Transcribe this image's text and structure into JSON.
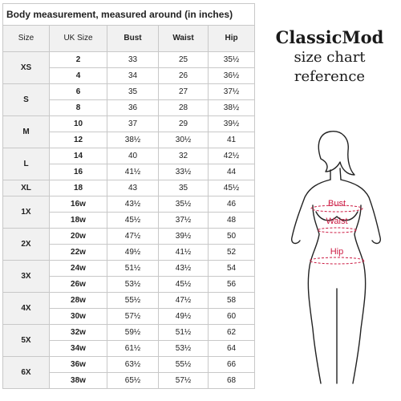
{
  "table": {
    "title": "Body measurement, measured around (in inches)",
    "headers": [
      "Size",
      "UK Size",
      "Bust",
      "Waist",
      "Hip"
    ],
    "groups": [
      {
        "size": "XS",
        "rows": [
          [
            "2",
            "33",
            "25",
            "35½"
          ],
          [
            "4",
            "34",
            "26",
            "36½"
          ]
        ]
      },
      {
        "size": "S",
        "rows": [
          [
            "6",
            "35",
            "27",
            "37½"
          ],
          [
            "8",
            "36",
            "28",
            "38½"
          ]
        ]
      },
      {
        "size": "M",
        "rows": [
          [
            "10",
            "37",
            "29",
            "39½"
          ],
          [
            "12",
            "38½",
            "30½",
            "41"
          ]
        ]
      },
      {
        "size": "L",
        "rows": [
          [
            "14",
            "40",
            "32",
            "42½"
          ],
          [
            "16",
            "41½",
            "33½",
            "44"
          ]
        ]
      },
      {
        "size": "XL",
        "rows": [
          [
            "18",
            "43",
            "35",
            "45½"
          ]
        ]
      },
      {
        "size": "1X",
        "rows": [
          [
            "16w",
            "43½",
            "35½",
            "46"
          ],
          [
            "18w",
            "45½",
            "37½",
            "48"
          ]
        ]
      },
      {
        "size": "2X",
        "rows": [
          [
            "20w",
            "47½",
            "39½",
            "50"
          ],
          [
            "22w",
            "49½",
            "41½",
            "52"
          ]
        ]
      },
      {
        "size": "3X",
        "rows": [
          [
            "24w",
            "51½",
            "43½",
            "54"
          ],
          [
            "26w",
            "53½",
            "45½",
            "56"
          ]
        ]
      },
      {
        "size": "4X",
        "rows": [
          [
            "28w",
            "55½",
            "47½",
            "58"
          ],
          [
            "30w",
            "57½",
            "49½",
            "60"
          ]
        ]
      },
      {
        "size": "5X",
        "rows": [
          [
            "32w",
            "59½",
            "51½",
            "62"
          ],
          [
            "34w",
            "61½",
            "53½",
            "64"
          ]
        ]
      },
      {
        "size": "6X",
        "rows": [
          [
            "36w",
            "63½",
            "55½",
            "66"
          ],
          [
            "38w",
            "65½",
            "57½",
            "68"
          ]
        ]
      }
    ]
  },
  "brand": {
    "title": "ClassicMod",
    "line1": "size chart",
    "line2": "reference"
  },
  "figure": {
    "labels": [
      "Bust",
      "Waist",
      "Hip"
    ],
    "label_color": "#cc1b43"
  }
}
